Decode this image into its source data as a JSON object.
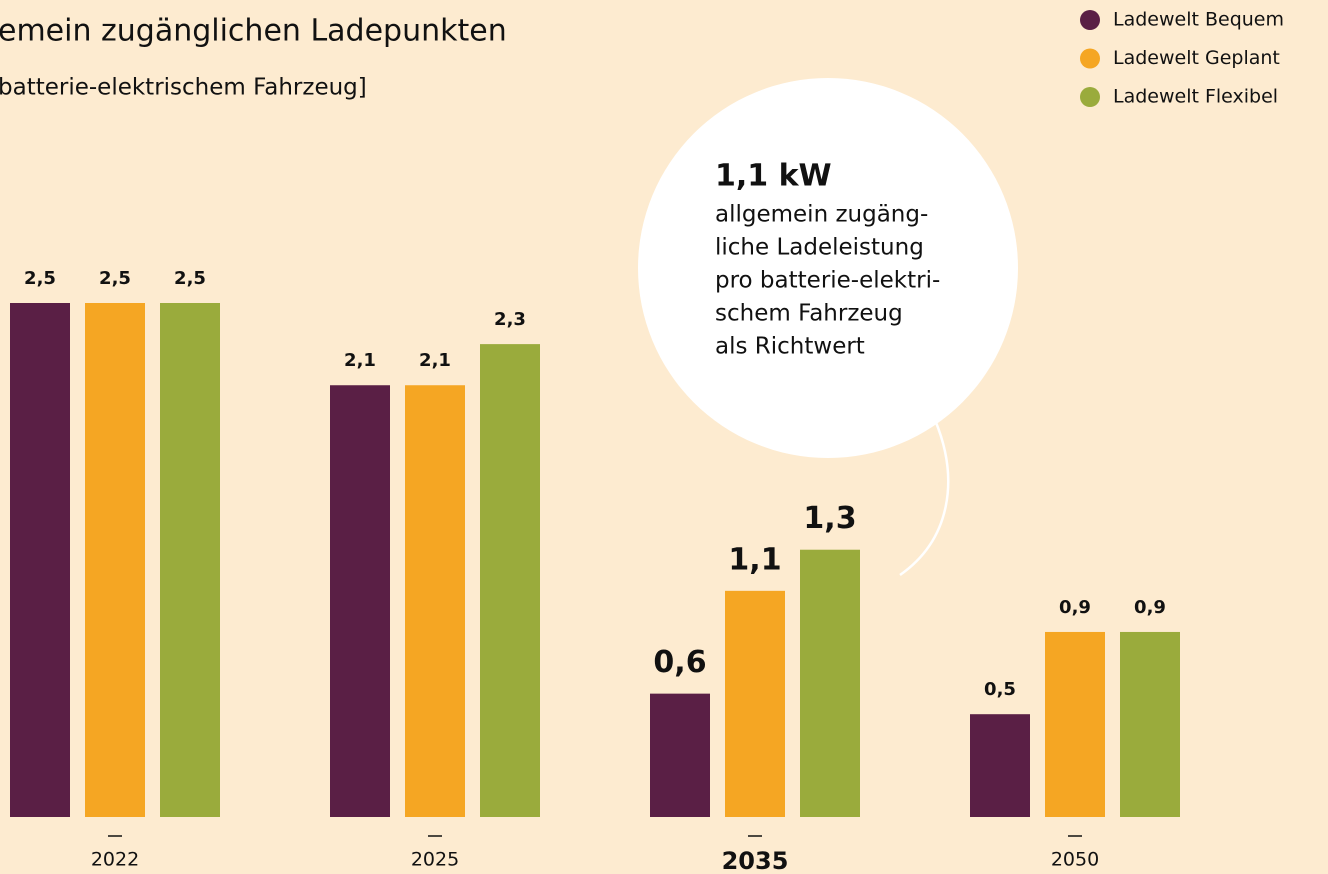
{
  "chart_data": {
    "type": "bar",
    "subtitle": [
      "emein zugänglichen Ladepunkten",
      "batterie-elektrischem Fahrzeug]"
    ],
    "categories": [
      "2022",
      "2025",
      "2035",
      "2050"
    ],
    "series": [
      {
        "name": "Ladewelt Bequem",
        "color": "#5a1f45",
        "values": [
          2.5,
          2.1,
          0.6,
          0.5
        ],
        "value_labels": [
          "2,5",
          "2,1",
          "0,6",
          "0,5"
        ]
      },
      {
        "name": "Ladewelt Geplant",
        "color": "#f5a623",
        "values": [
          2.5,
          2.1,
          1.1,
          0.9
        ],
        "value_labels": [
          "2,5",
          "2,1",
          "1,1",
          "0,9"
        ]
      },
      {
        "name": "Ladewelt Flexibel",
        "color": "#9aab3c",
        "values": [
          2.5,
          2.3,
          1.3,
          0.9
        ],
        "value_labels": [
          "2,5",
          "2,3",
          "1,3",
          "0,9"
        ]
      }
    ],
    "ylim": [
      0,
      2.5
    ],
    "annotation": {
      "title": "1,1 kW",
      "lines": [
        "allgemein zugäng-",
        "liche Ladeleistung",
        "pro batterie-elektri-",
        "schem Fahrzeug",
        "als Richtwert"
      ]
    }
  }
}
